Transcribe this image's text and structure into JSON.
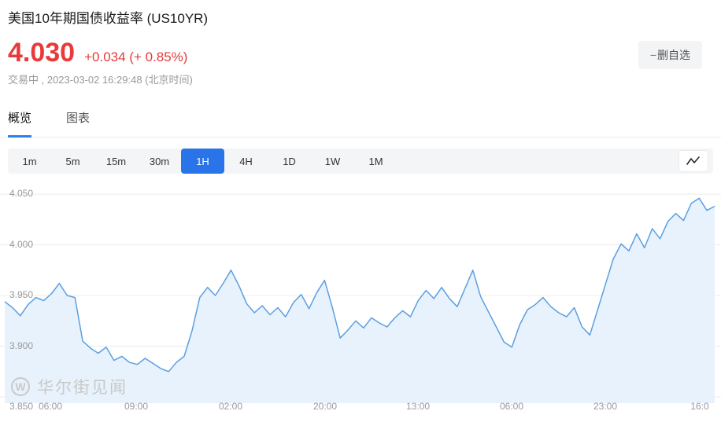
{
  "header": {
    "title": "美国10年期国债收益率 (US10YR)",
    "price": "4.030",
    "change": "+0.034 (+ 0.85%)",
    "status": "交易中 , 2023-03-02 16:29:48 (北京时间)",
    "remove_minus": "−",
    "remove_label": "删自选"
  },
  "tabs": [
    {
      "label": "概览",
      "active": true
    },
    {
      "label": "图表",
      "active": false
    }
  ],
  "ranges": [
    {
      "label": "1m"
    },
    {
      "label": "5m"
    },
    {
      "label": "15m"
    },
    {
      "label": "30m"
    },
    {
      "label": "1H"
    },
    {
      "label": "4H"
    },
    {
      "label": "1D"
    },
    {
      "label": "1W"
    },
    {
      "label": "1M"
    }
  ],
  "active_range": "1H",
  "watermark_logo": "W",
  "watermark_text": "华尔街见闻",
  "colors": {
    "price_red": "#e83a3a",
    "accent_blue": "#2874e8",
    "chart_line": "#5b9fe0",
    "chart_fill": "#e8f2fc",
    "gridline": "#ececec"
  },
  "chart_data": {
    "type": "area",
    "ylim": [
      3.8438,
      4.0578
    ],
    "y_ticks": [
      "4.050",
      "4.000",
      "3.950",
      "3.900",
      "3.850"
    ],
    "x_ticks": [
      {
        "label": "06:00",
        "pos": 0.07
      },
      {
        "label": "09:00",
        "pos": 0.189
      },
      {
        "label": "02:00",
        "pos": 0.32
      },
      {
        "label": "20:00",
        "pos": 0.451
      },
      {
        "label": "13:00",
        "pos": 0.58
      },
      {
        "label": "06:00",
        "pos": 0.71
      },
      {
        "label": "23:00",
        "pos": 0.839
      },
      {
        "label": "16:0",
        "pos": 0.971
      }
    ],
    "values": [
      3.944,
      3.938,
      3.93,
      3.941,
      3.948,
      3.945,
      3.952,
      3.962,
      3.95,
      3.948,
      3.905,
      3.898,
      3.893,
      3.899,
      3.886,
      3.89,
      3.884,
      3.882,
      3.888,
      3.883,
      3.878,
      3.875,
      3.884,
      3.89,
      3.915,
      3.948,
      3.958,
      3.95,
      3.962,
      3.975,
      3.96,
      3.942,
      3.933,
      3.94,
      3.931,
      3.938,
      3.929,
      3.943,
      3.951,
      3.937,
      3.953,
      3.965,
      3.938,
      3.908,
      3.916,
      3.925,
      3.918,
      3.928,
      3.923,
      3.919,
      3.928,
      3.935,
      3.929,
      3.945,
      3.955,
      3.947,
      3.958,
      3.947,
      3.939,
      3.957,
      3.975,
      3.949,
      3.934,
      3.919,
      3.904,
      3.899,
      3.921,
      3.936,
      3.941,
      3.948,
      3.939,
      3.933,
      3.929,
      3.938,
      3.919,
      3.911,
      3.936,
      3.961,
      3.986,
      4.001,
      3.994,
      4.011,
      3.997,
      4.016,
      4.006,
      4.023,
      4.031,
      4.024,
      4.041,
      4.046,
      4.034,
      4.038
    ]
  }
}
